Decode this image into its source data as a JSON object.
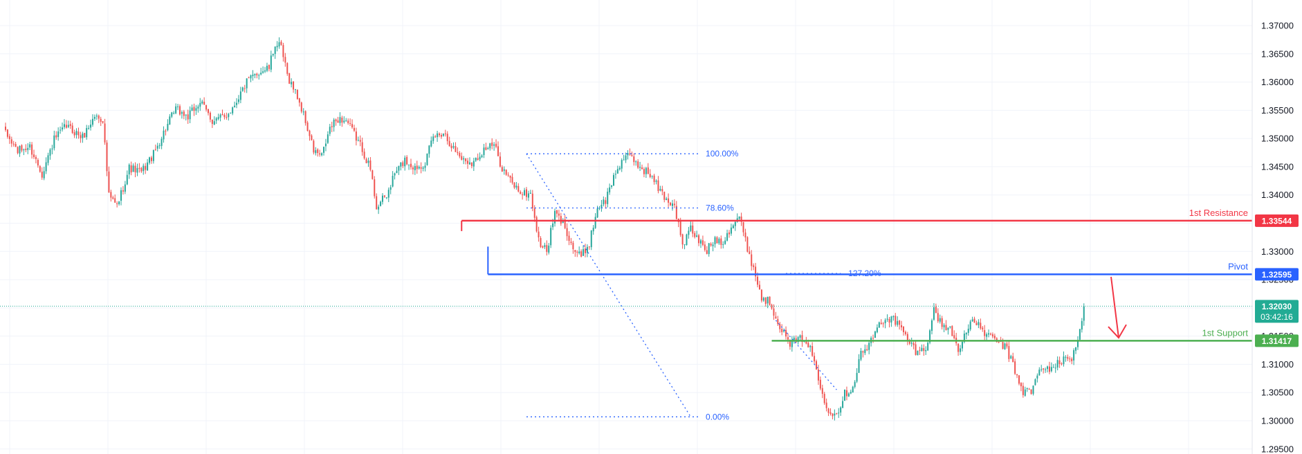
{
  "colors": {
    "up": "#26a69a",
    "down": "#ef5350",
    "resistance": "#f23645",
    "pivot": "#2962ff",
    "support": "#4caf50",
    "fib": "#2962ff",
    "current_price": "#22ab94",
    "arrow": "#f23645",
    "grid": "#f0f3fa",
    "axis_text": "#131722"
  },
  "chart_data": {
    "type": "candlestick",
    "title": "",
    "xlabel": "",
    "ylabel": "",
    "ylim": [
      1.2948,
      1.3735
    ],
    "grid": true,
    "y_ticks": [
      "1.37000",
      "1.36500",
      "1.36000",
      "1.35500",
      "1.35000",
      "1.34500",
      "1.34000",
      "1.33500",
      "1.33000",
      "1.32500",
      "1.32000",
      "1.31500",
      "1.31000",
      "1.30500",
      "1.30000",
      "1.29500"
    ],
    "price_path": [
      [
        0,
        1.3508
      ],
      [
        6,
        1.3478
      ],
      [
        12,
        1.3485
      ],
      [
        18,
        1.3438
      ],
      [
        24,
        1.3498
      ],
      [
        30,
        1.3522
      ],
      [
        38,
        1.3502
      ],
      [
        44,
        1.354
      ],
      [
        48,
        1.3534
      ],
      [
        51,
        1.3398
      ],
      [
        55,
        1.338
      ],
      [
        61,
        1.3448
      ],
      [
        67,
        1.344
      ],
      [
        73,
        1.3472
      ],
      [
        79,
        1.3518
      ],
      [
        84,
        1.3552
      ],
      [
        90,
        1.3538
      ],
      [
        96,
        1.3565
      ],
      [
        102,
        1.3532
      ],
      [
        108,
        1.3538
      ],
      [
        112,
        1.3555
      ],
      [
        119,
        1.36
      ],
      [
        125,
        1.3618
      ],
      [
        130,
        1.3625
      ],
      [
        133,
        1.3668
      ],
      [
        136,
        1.366
      ],
      [
        139,
        1.3612
      ],
      [
        144,
        1.3575
      ],
      [
        148,
        1.353
      ],
      [
        152,
        1.3478
      ],
      [
        156,
        1.3468
      ],
      [
        160,
        1.3518
      ],
      [
        164,
        1.3535
      ],
      [
        168,
        1.3532
      ],
      [
        172,
        1.3508
      ],
      [
        176,
        1.3482
      ],
      [
        180,
        1.3445
      ],
      [
        183,
        1.338
      ],
      [
        188,
        1.3398
      ],
      [
        192,
        1.3438
      ],
      [
        197,
        1.3462
      ],
      [
        202,
        1.3448
      ],
      [
        207,
        1.3458
      ],
      [
        211,
        1.3502
      ],
      [
        216,
        1.3512
      ],
      [
        221,
        1.3482
      ],
      [
        226,
        1.3462
      ],
      [
        231,
        1.3458
      ],
      [
        236,
        1.3482
      ],
      [
        241,
        1.3488
      ],
      [
        245,
        1.3448
      ],
      [
        250,
        1.342
      ],
      [
        255,
        1.3402
      ],
      [
        259,
        1.3402
      ],
      [
        263,
        1.3318
      ],
      [
        267,
        1.33
      ],
      [
        271,
        1.3368
      ],
      [
        276,
        1.3345
      ],
      [
        280,
        1.3305
      ],
      [
        284,
        1.329
      ],
      [
        288,
        1.3315
      ],
      [
        292,
        1.3378
      ],
      [
        296,
        1.339
      ],
      [
        300,
        1.3432
      ],
      [
        304,
        1.3462
      ],
      [
        308,
        1.3468
      ],
      [
        313,
        1.345
      ],
      [
        318,
        1.3436
      ],
      [
        322,
        1.3412
      ],
      [
        326,
        1.3392
      ],
      [
        330,
        1.3382
      ],
      [
        334,
        1.331
      ],
      [
        338,
        1.334
      ],
      [
        342,
        1.3318
      ],
      [
        346,
        1.3302
      ],
      [
        350,
        1.3322
      ],
      [
        354,
        1.3318
      ],
      [
        358,
        1.3345
      ],
      [
        362,
        1.3362
      ],
      [
        365,
        1.3318
      ],
      [
        369,
        1.327
      ],
      [
        373,
        1.3218
      ],
      [
        377,
        1.321
      ],
      [
        381,
        1.3178
      ],
      [
        386,
        1.3138
      ],
      [
        390,
        1.314
      ],
      [
        394,
        1.3148
      ],
      [
        398,
        1.3118
      ],
      [
        402,
        1.3058
      ],
      [
        406,
        1.302
      ],
      [
        410,
        1.3012
      ],
      [
        414,
        1.3048
      ],
      [
        418,
        1.306
      ],
      [
        422,
        1.312
      ],
      [
        426,
        1.3132
      ],
      [
        430,
        1.3165
      ],
      [
        434,
        1.3182
      ],
      [
        438,
        1.318
      ],
      [
        442,
        1.3162
      ],
      [
        446,
        1.3138
      ],
      [
        450,
        1.312
      ],
      [
        454,
        1.313
      ],
      [
        458,
        1.3195
      ],
      [
        462,
        1.317
      ],
      [
        466,
        1.3162
      ],
      [
        470,
        1.3128
      ],
      [
        474,
        1.3158
      ],
      [
        478,
        1.3178
      ],
      [
        482,
        1.316
      ],
      [
        486,
        1.3146
      ],
      [
        490,
        1.314
      ],
      [
        494,
        1.3126
      ],
      [
        498,
        1.3088
      ],
      [
        502,
        1.3052
      ],
      [
        506,
        1.3052
      ],
      [
        510,
        1.3088
      ],
      [
        514,
        1.3092
      ],
      [
        518,
        1.3098
      ],
      [
        522,
        1.3108
      ],
      [
        526,
        1.3112
      ],
      [
        530,
        1.3158
      ],
      [
        532,
        1.3203
      ]
    ],
    "levels": [
      {
        "label": "1st Resistance",
        "value": "1.33544",
        "price": 1.33544
      },
      {
        "label": "Pivot",
        "value": "1.32595",
        "price": 1.32595
      },
      {
        "label": "1st Support",
        "value": "1.31417",
        "price": 1.31417
      }
    ],
    "current_price": {
      "value": "1.32030",
      "price": 1.3203,
      "countdown": "03:42:16"
    },
    "fibonacci": [
      {
        "label": "100.00%",
        "price": 1.3473
      },
      {
        "label": "78.60%",
        "price": 1.3377
      },
      {
        "label": "127.20%",
        "price": 1.3261
      },
      {
        "label": "0.00%",
        "price": 1.3007
      }
    ],
    "annotation": "red arrow pointing down from pivot toward 1st support"
  }
}
